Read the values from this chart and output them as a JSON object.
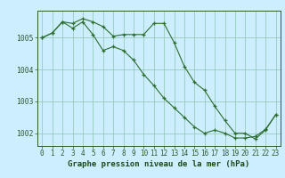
{
  "title": "Graphe pression niveau de la mer (hPa)",
  "bg_color": "#cceeff",
  "grid_color": "#99ccbb",
  "line_color": "#2d6e2d",
  "marker": "+",
  "xlim": [
    -0.5,
    23.5
  ],
  "ylim": [
    1001.6,
    1005.85
  ],
  "yticks": [
    1002,
    1003,
    1004,
    1005
  ],
  "xticks": [
    0,
    1,
    2,
    3,
    4,
    5,
    6,
    7,
    8,
    9,
    10,
    11,
    12,
    13,
    14,
    15,
    16,
    17,
    18,
    19,
    20,
    21,
    22,
    23
  ],
  "series1_x": [
    0,
    1,
    2,
    3,
    4,
    5,
    6,
    7,
    8,
    9,
    10,
    11,
    12,
    13,
    14,
    15,
    16,
    17,
    18,
    19,
    20,
    21,
    22,
    23
  ],
  "series1_y": [
    1005.0,
    1005.15,
    1005.5,
    1005.45,
    1005.6,
    1005.5,
    1005.35,
    1005.05,
    1005.1,
    1005.1,
    1005.1,
    1005.45,
    1005.45,
    1004.85,
    1004.1,
    1003.6,
    1003.35,
    1002.85,
    1002.4,
    1002.0,
    1002.0,
    1001.82,
    1002.1,
    1002.58
  ],
  "series2_x": [
    0,
    1,
    2,
    3,
    4,
    5,
    6,
    7,
    8,
    9,
    10,
    11,
    12,
    13,
    14,
    15,
    16,
    17,
    18,
    19,
    20,
    21,
    22,
    23
  ],
  "series2_y": [
    1005.0,
    1005.15,
    1005.5,
    1005.3,
    1005.5,
    1005.1,
    1004.6,
    1004.72,
    1004.6,
    1004.3,
    1003.85,
    1003.5,
    1003.1,
    1002.8,
    1002.5,
    1002.2,
    1002.0,
    1002.1,
    1002.0,
    1001.85,
    1001.85,
    1001.9,
    1002.12,
    1002.58
  ],
  "tick_fontsize": 5.5,
  "xlabel_fontsize": 6.5,
  "tick_color": "#2d5a2d",
  "xlabel_color": "#1a4a1a"
}
